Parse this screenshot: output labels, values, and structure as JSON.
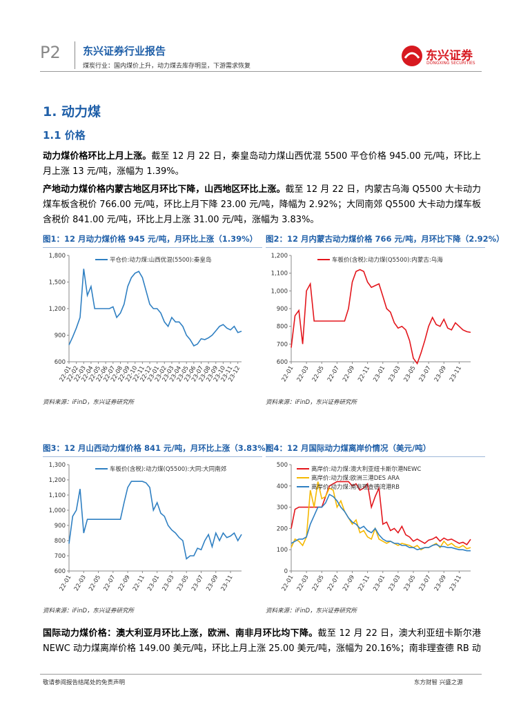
{
  "header": {
    "page": "P2",
    "report": "东兴证券行业报告",
    "subtitle": "煤炭行业：国内煤价上升，动力煤去库存明显，下游需求恢复",
    "logo": "东兴证券",
    "logo_en": "DONGXING SECURITIES"
  },
  "section": {
    "heading": "1. 动力煤",
    "subheading": "1.1 价格"
  },
  "paragraphs": [
    {
      "lead": "动力煤价格环比上月上涨。",
      "text": "截至 12 月 22 日，秦皇岛动力煤山西优混 5500 平仓价格 945.00 元/吨，环比上月上涨 13 元/吨，涨幅为 1.39%。"
    },
    {
      "lead": "产地动力煤价格内蒙古地区月环比下降，山西地区环比上涨。",
      "text": "截至 12 月 22 日，内蒙古乌海 Q5500 大卡动力煤车板含税价 766.00 元/吨，环比上月下降 23.00 元/吨，降幅为 2.92%；大同南郊 Q5500 大卡动力煤车板含税价 841.00 元/吨，环比上月上涨 31.00 元/吨，涨幅为 3.83%。"
    },
    {
      "lead": "国际动力煤价格：澳大利亚月环比上涨，欧洲、南非月环比均下降。",
      "text": "截至 12 月 22 日，澳大利亚纽卡斯尔港 NEWC 动力煤离岸价格 149.00 美元/吨，环比上月上涨 25.00 美元/吨，涨幅为 20.16%；南非理查德 RB 动"
    }
  ],
  "figures": [
    {
      "title": "图1：12 月动力煤价格 945 元/吨，月环比上涨（1.39%）",
      "source": "资料来源：iFinD，东兴证券研究所",
      "chart": {
        "type": "line",
        "ylim": [
          600,
          1800
        ],
        "yticks": [
          600,
          900,
          {
            "value": 1200,
            "label": "1,200"
          },
          {
            "value": 1500,
            "label": "1,500"
          },
          {
            "value": 1800,
            "label": "1,800"
          }
        ],
        "categories": [
          "22-01",
          null,
          "22-02",
          null,
          "22-03",
          null,
          "22-04",
          null,
          "22-05",
          null,
          "22-06",
          null,
          "22-07",
          null,
          "22-08",
          null,
          "22-09",
          null,
          "22-10",
          null,
          "22-11",
          null,
          "22-12",
          null,
          "23-01",
          null,
          "23-02",
          null,
          "23-03",
          null,
          "23-04",
          null,
          "23-05",
          null,
          "23-06",
          null,
          "23-07",
          null,
          "23-08",
          null,
          "23-09",
          null,
          "23-10",
          null,
          "23-11",
          null,
          "23-12",
          null
        ],
        "series": [
          {
            "name": "平仓价:动力煤:山西优混(5500):秦皇岛",
            "color": "#2e7fc2",
            "values": [
              790,
              880,
              980,
              1100,
              1650,
              1350,
              1450,
              1200,
              1200,
              1200,
              1200,
              1200,
              1220,
              1100,
              1150,
              1250,
              1450,
              1550,
              1600,
              1620,
              1550,
              1400,
              1250,
              1200,
              1200,
              1150,
              1050,
              1000,
              1100,
              1050,
              1050,
              1000,
              900,
              850,
              780,
              800,
              860,
              850,
              870,
              900,
              950,
              1000,
              1020,
              980,
              960,
              1000,
              930,
              945
            ]
          }
        ]
      }
    },
    {
      "title": "图2：12 月内蒙古动力煤价格 766 元/吨，月环比下降（2.92%）",
      "source": "资料来源：iFinD，东兴证券研究所",
      "chart": {
        "type": "line",
        "ylim": [
          600,
          1200
        ],
        "yticks": [
          600,
          700,
          800,
          900,
          {
            "value": 1000,
            "label": "1,000"
          },
          {
            "value": 1100,
            "label": "1,100"
          },
          {
            "value": 1200,
            "label": "1,200"
          }
        ],
        "categories": [
          "22-01",
          null,
          null,
          null,
          "22-03",
          null,
          null,
          null,
          "22-05",
          null,
          null,
          null,
          "22-07",
          null,
          null,
          null,
          "22-09",
          null,
          null,
          null,
          "22-11",
          null,
          null,
          null,
          "23-01",
          null,
          null,
          null,
          "23-03",
          null,
          null,
          null,
          "23-05",
          null,
          null,
          null,
          "23-07",
          null,
          null,
          null,
          "23-09",
          null,
          null,
          null,
          "23-11",
          null,
          null,
          null
        ],
        "series": [
          {
            "name": "车板价(含税):动力煤(Q5500):内蒙古:乌海",
            "color": "#e3151b",
            "values": [
              680,
              860,
              890,
              700,
              1000,
              1040,
              830,
              830,
              830,
              830,
              830,
              830,
              830,
              830,
              830,
              900,
              1050,
              1110,
              1120,
              1110,
              1050,
              1020,
              1030,
              1040,
              970,
              900,
              880,
              820,
              790,
              800,
              780,
              720,
              620,
              590,
              650,
              720,
              800,
              850,
              810,
              800,
              840,
              790,
              780,
              820,
              800,
              780,
              770,
              766
            ]
          }
        ]
      }
    },
    {
      "title": "图3：12 月山西动力煤价格 841 元/吨，月环比上涨（3.83%）",
      "source": "资料来源：iFinD，东兴证券研究所",
      "chart": {
        "type": "line",
        "ylim": [
          600,
          1300
        ],
        "yticks": [
          600,
          700,
          800,
          900,
          {
            "value": 1000,
            "label": "1,000"
          },
          {
            "value": 1100,
            "label": "1,100"
          },
          {
            "value": 1200,
            "label": "1,200"
          },
          {
            "value": 1300,
            "label": "1,300"
          }
        ],
        "categories": [
          "22-01",
          null,
          null,
          null,
          "22-03",
          null,
          null,
          null,
          "22-05",
          null,
          null,
          null,
          "22-07",
          null,
          null,
          null,
          "22-09",
          null,
          null,
          null,
          "22-11",
          null,
          null,
          null,
          "23-01",
          null,
          null,
          null,
          "23-03",
          null,
          null,
          null,
          "23-05",
          null,
          null,
          null,
          "23-07",
          null,
          null,
          null,
          "23-09",
          null,
          null,
          null,
          "23-11",
          null,
          null,
          null
        ],
        "series": [
          {
            "name": "车板价(含税):动力煤(Q5500):大同:大同南郊",
            "color": "#2e7fc2",
            "values": [
              780,
              960,
              1000,
              1140,
              850,
              940,
              940,
              940,
              940,
              940,
              940,
              940,
              940,
              940,
              940,
              1050,
              1150,
              1190,
              1190,
              1190,
              1190,
              1180,
              1150,
              1000,
              1050,
              980,
              960,
              900,
              870,
              850,
              820,
              800,
              680,
              700,
              700,
              750,
              740,
              800,
              840,
              760,
              850,
              800,
              850,
              820,
              830,
              850,
              800,
              841
            ]
          }
        ]
      }
    },
    {
      "title": "图4：12 月国际动力煤离岸价情况（美元/吨）",
      "source": "资料来源：iFinD，东兴证券研究所",
      "chart": {
        "type": "line",
        "ylim": [
          0,
          500
        ],
        "yticks": [
          0,
          100,
          200,
          300,
          400,
          500
        ],
        "categories": [
          "22-01",
          null,
          null,
          null,
          "22-03",
          null,
          null,
          null,
          "22-05",
          null,
          null,
          null,
          "22-07",
          null,
          null,
          null,
          "22-09",
          null,
          null,
          null,
          "22-11",
          null,
          null,
          null,
          "23-01",
          null,
          null,
          null,
          "23-03",
          null,
          null,
          null,
          "23-05",
          null,
          null,
          null,
          "23-07",
          null,
          null,
          null,
          "23-09",
          null,
          null,
          null,
          "23-11",
          null,
          null,
          null
        ],
        "series": [
          {
            "name": "离岸价:动力煤:澳大利亚纽卡斯尔港NEWC",
            "color": "#e3151b",
            "values": [
              200,
              290,
              300,
              300,
              300,
              300,
              300,
              300,
              300,
              350,
              400,
              410,
              420,
              420,
              420,
              420,
              400,
              410,
              380,
              390,
              410,
              300,
              350,
              390,
              220,
              230,
              190,
              200,
              180,
              210,
              170,
              160,
              140,
              150,
              140,
              130,
              145,
              150,
              160,
              140,
              155,
              145,
              150,
              140,
              130,
              135,
              124,
              149
            ]
          },
          {
            "name": "离岸价:动力煤:欧洲三港DES ARA",
            "color": "#f5b800",
            "values": [
              110,
              150,
              140,
              120,
              160,
              380,
              300,
              420,
              340,
              350,
              390,
              380,
              300,
              330,
              280,
              250,
              220,
              240,
              180,
              190,
              160,
              150,
              200,
              150,
              140,
              130,
              140,
              130,
              120,
              130,
              125,
              120,
              110,
              120,
              100,
              110,
              110,
              120,
              130,
              110,
              140,
              120,
              130,
              115,
              110,
              120,
              105,
              110
            ]
          },
          {
            "name": "离岸价:动力煤:南非理查德湾港RB",
            "color": "#2e7fc2",
            "values": [
              130,
              140,
              150,
              150,
              160,
              220,
              260,
              300,
              300,
              320,
              360,
              350,
              330,
              300,
              280,
              250,
              230,
              220,
              200,
              210,
              190,
              180,
              200,
              170,
              150,
              140,
              140,
              130,
              130,
              120,
              120,
              110,
              110,
              100,
              105,
              110,
              110,
              120,
              125,
              115,
              115,
              110,
              110,
              105,
              100,
              100,
              95,
              95
            ]
          }
        ]
      }
    }
  ],
  "footer": {
    "left": "敬请参阅报告结尾处的免责声明",
    "right": "东方财智 兴盛之源"
  }
}
